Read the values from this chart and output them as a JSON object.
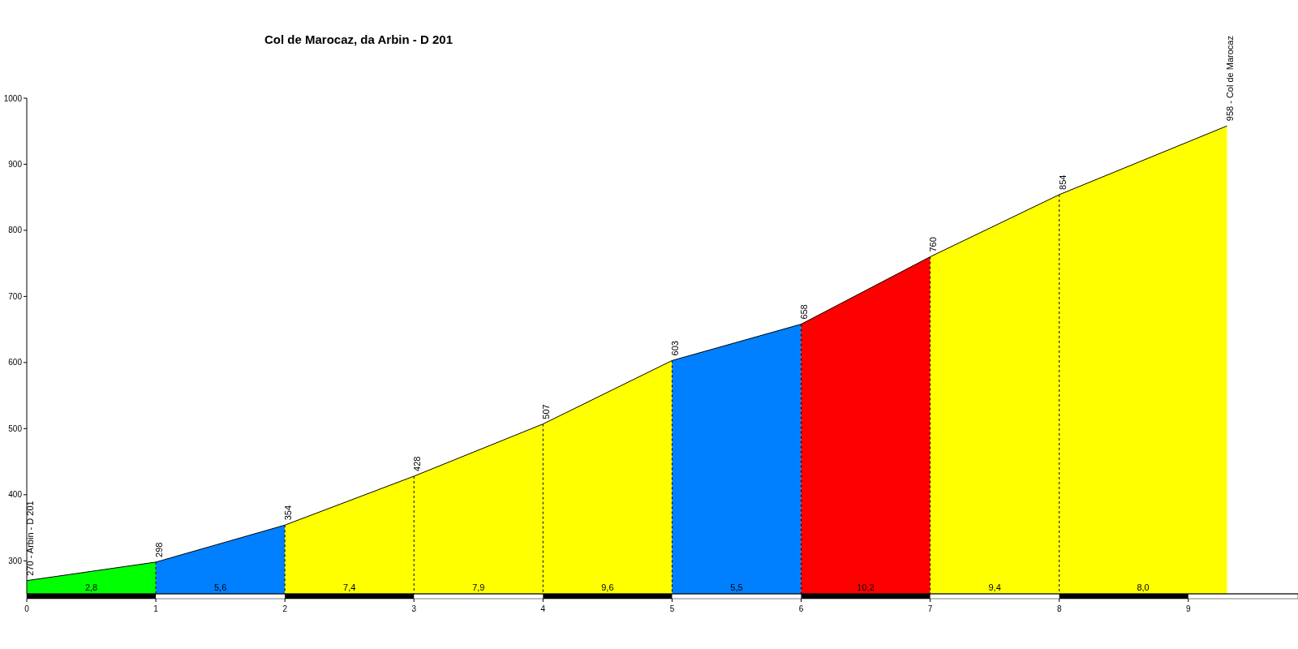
{
  "chart_data": {
    "type": "area",
    "title": "Col de Marocaz, da Arbin - D 201",
    "xlim": [
      0,
      9.85
    ],
    "xticks": [
      0,
      1,
      2,
      3,
      4,
      5,
      6,
      7,
      8,
      9
    ],
    "ylim": [
      250,
      1000
    ],
    "yticks": [
      300,
      400,
      500,
      600,
      700,
      800,
      900,
      1000
    ],
    "grid": "x",
    "series": [
      {
        "color": "#00ff00",
        "x": [
          0,
          1
        ],
        "values": [
          270,
          298
        ]
      },
      {
        "color": "#0080ff",
        "x": [
          1,
          2
        ],
        "values": [
          298,
          354
        ]
      },
      {
        "color": "#ffff00",
        "x": [
          2,
          3
        ],
        "values": [
          354,
          428
        ]
      },
      {
        "color": "#ffff00",
        "x": [
          3,
          4
        ],
        "values": [
          428,
          507
        ]
      },
      {
        "color": "#ffff00",
        "x": [
          4,
          5
        ],
        "values": [
          507,
          603
        ]
      },
      {
        "color": "#0080ff",
        "x": [
          5,
          6
        ],
        "values": [
          603,
          658
        ]
      },
      {
        "color": "#ff0000",
        "x": [
          6,
          7
        ],
        "values": [
          658,
          760
        ]
      },
      {
        "color": "#ffff00",
        "x": [
          7,
          8
        ],
        "values": [
          760,
          854
        ]
      },
      {
        "color": "#ffff00",
        "x": [
          8,
          9.3
        ],
        "values": [
          854,
          958
        ]
      }
    ],
    "annotations": [
      {
        "text": "270 - Arbin - D 201",
        "x": 0,
        "y": 270
      },
      {
        "text": "298",
        "x": 1,
        "y": 298
      },
      {
        "text": "354",
        "x": 2,
        "y": 354
      },
      {
        "text": "428",
        "x": 3,
        "y": 428
      },
      {
        "text": "507",
        "x": 4,
        "y": 507
      },
      {
        "text": "603",
        "x": 5,
        "y": 603
      },
      {
        "text": "658",
        "x": 6,
        "y": 658
      },
      {
        "text": "760",
        "x": 7,
        "y": 760
      },
      {
        "text": "854",
        "x": 8,
        "y": 854
      },
      {
        "text": "958 - Col de Marocaz",
        "x": 9.3,
        "y": 958
      },
      "2,8",
      "5,6",
      "7,4",
      "7,9",
      "9,6",
      "5,5",
      "10,2",
      "9,4",
      "8,0"
    ]
  }
}
